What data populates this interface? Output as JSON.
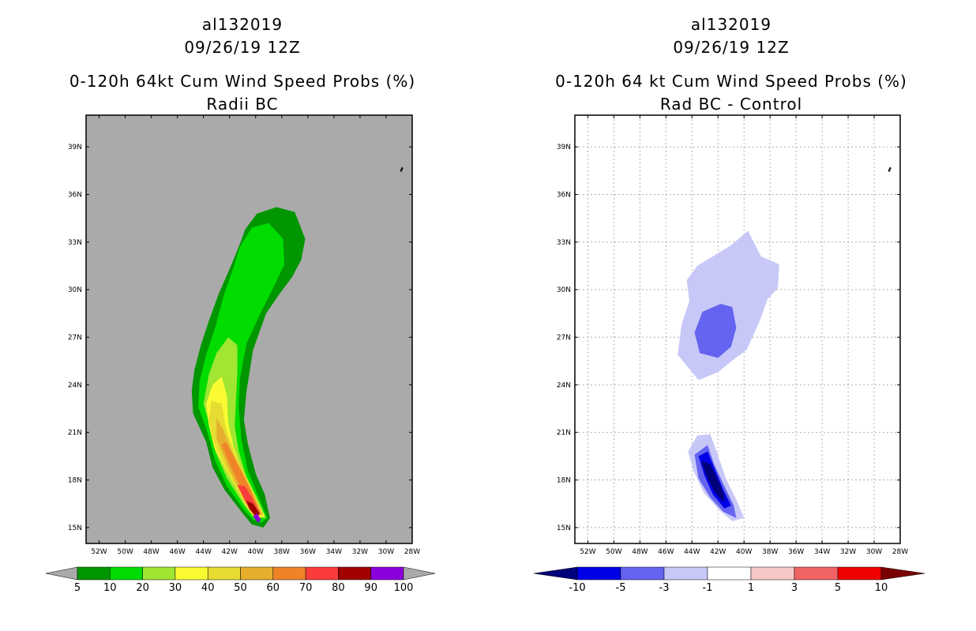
{
  "chart_data": [
    {
      "type": "heatmap",
      "title_lines": [
        "al132019",
        "09/26/19 12Z",
        "0-120h 64kt Cum Wind Speed Probs (%)",
        "Radii BC"
      ],
      "xlabel": "",
      "ylabel": "",
      "xlim": [
        -53,
        -28
      ],
      "ylim": [
        14,
        41
      ],
      "x_ticks": [
        "52W",
        "50W",
        "48W",
        "46W",
        "44W",
        "42W",
        "40W",
        "38W",
        "36W",
        "34W",
        "32W",
        "30W",
        "28W"
      ],
      "y_ticks": [
        "15N",
        "18N",
        "21N",
        "24N",
        "27N",
        "30N",
        "33N",
        "36N",
        "39N"
      ],
      "background": "#aaaaaa",
      "colorbar": {
        "levels": [
          "5",
          "10",
          "20",
          "30",
          "40",
          "50",
          "60",
          "70",
          "80",
          "90",
          "100"
        ],
        "colors": [
          "#009600",
          "#00dc00",
          "#a0e632",
          "#fafa32",
          "#e6dc32",
          "#e6af2d",
          "#f08228",
          "#fa3c3c",
          "#a00000",
          "#8c00dc"
        ],
        "under_color": "#aaaaaa",
        "over_color": "#aaaaaa"
      },
      "contours": [
        {
          "level": 5,
          "color": "#009600",
          "polygon": [
            [
              -40.3,
              15.2
            ],
            [
              -40.9,
              15.8
            ],
            [
              -42.4,
              17.4
            ],
            [
              -43.3,
              18.8
            ],
            [
              -43.8,
              20.4
            ],
            [
              -44.8,
              22.2
            ],
            [
              -44.9,
              23.6
            ],
            [
              -44.7,
              24.9
            ],
            [
              -44.2,
              26.5
            ],
            [
              -43.6,
              28.0
            ],
            [
              -42.8,
              29.8
            ],
            [
              -41.9,
              31.5
            ],
            [
              -41.2,
              32.9
            ],
            [
              -40.8,
              33.8
            ],
            [
              -39.9,
              34.8
            ],
            [
              -38.4,
              35.2
            ],
            [
              -37.0,
              34.9
            ],
            [
              -36.2,
              33.2
            ],
            [
              -36.5,
              31.9
            ],
            [
              -37.2,
              30.8
            ],
            [
              -38.2,
              29.7
            ],
            [
              -39.2,
              28.5
            ],
            [
              -40.2,
              26.2
            ],
            [
              -40.7,
              23.6
            ],
            [
              -40.9,
              21.8
            ],
            [
              -40.6,
              20.3
            ],
            [
              -40.0,
              18.4
            ],
            [
              -39.3,
              17.1
            ],
            [
              -38.9,
              15.6
            ],
            [
              -39.4,
              15.0
            ]
          ]
        },
        {
          "level": 10,
          "color": "#00dc00",
          "polygon": [
            [
              -40.2,
              15.5
            ],
            [
              -40.8,
              16.0
            ],
            [
              -42.2,
              17.6
            ],
            [
              -43.1,
              19.2
            ],
            [
              -43.7,
              21.0
            ],
            [
              -44.4,
              22.6
            ],
            [
              -44.3,
              24.2
            ],
            [
              -43.8,
              25.9
            ],
            [
              -43.1,
              27.6
            ],
            [
              -42.5,
              29.5
            ],
            [
              -41.7,
              31.4
            ],
            [
              -41.2,
              32.7
            ],
            [
              -40.3,
              33.9
            ],
            [
              -39.0,
              34.2
            ],
            [
              -37.9,
              33.2
            ],
            [
              -37.8,
              31.6
            ],
            [
              -38.6,
              30.2
            ],
            [
              -39.7,
              28.4
            ],
            [
              -40.7,
              26.6
            ],
            [
              -41.2,
              24.4
            ],
            [
              -41.3,
              22.6
            ],
            [
              -41.1,
              20.6
            ],
            [
              -40.6,
              18.6
            ],
            [
              -39.8,
              17.0
            ],
            [
              -39.1,
              15.6
            ],
            [
              -39.6,
              15.3
            ]
          ]
        },
        {
          "level": 20,
          "color": "#a0e632",
          "polygon": [
            [
              -40.1,
              15.6
            ],
            [
              -40.8,
              16.3
            ],
            [
              -42.2,
              18.1
            ],
            [
              -43.1,
              19.8
            ],
            [
              -43.5,
              21.4
            ],
            [
              -44.0,
              22.8
            ],
            [
              -43.6,
              24.6
            ],
            [
              -43.0,
              26.0
            ],
            [
              -42.1,
              27.0
            ],
            [
              -41.4,
              26.5
            ],
            [
              -41.4,
              24.8
            ],
            [
              -41.5,
              23.2
            ],
            [
              -41.6,
              21.4
            ],
            [
              -41.3,
              19.8
            ],
            [
              -40.7,
              18.2
            ],
            [
              -39.9,
              16.9
            ],
            [
              -39.2,
              15.6
            ]
          ]
        },
        {
          "level": 30,
          "color": "#fafa32",
          "polygon": [
            [
              -40.1,
              15.6
            ],
            [
              -40.8,
              16.5
            ],
            [
              -42.2,
              18.5
            ],
            [
              -43.2,
              20.1
            ],
            [
              -43.6,
              21.5
            ],
            [
              -43.8,
              22.8
            ],
            [
              -43.3,
              24.0
            ],
            [
              -42.6,
              24.5
            ],
            [
              -42.2,
              23.3
            ],
            [
              -42.1,
              21.6
            ],
            [
              -41.7,
              20.1
            ],
            [
              -41.0,
              18.6
            ],
            [
              -40.2,
              17.2
            ],
            [
              -39.3,
              15.7
            ]
          ]
        },
        {
          "level": 40,
          "color": "#e6dc32",
          "polygon": [
            [
              -40.1,
              15.6
            ],
            [
              -40.9,
              16.6
            ],
            [
              -42.2,
              18.6
            ],
            [
              -43.2,
              20.3
            ],
            [
              -43.6,
              21.8
            ],
            [
              -43.4,
              23.0
            ],
            [
              -42.6,
              22.8
            ],
            [
              -42.3,
              21.3
            ],
            [
              -41.6,
              19.7
            ],
            [
              -40.5,
              17.8
            ],
            [
              -39.4,
              15.8
            ]
          ]
        },
        {
          "level": 50,
          "color": "#e6af2d",
          "polygon": [
            [
              -40.1,
              15.7
            ],
            [
              -40.9,
              16.8
            ],
            [
              -42.1,
              18.8
            ],
            [
              -43.0,
              20.6
            ],
            [
              -43.0,
              21.9
            ],
            [
              -42.5,
              21.2
            ],
            [
              -41.8,
              19.8
            ],
            [
              -40.6,
              17.8
            ],
            [
              -39.5,
              15.8
            ]
          ]
        },
        {
          "level": 60,
          "color": "#f08228",
          "polygon": [
            [
              -40.1,
              15.7
            ],
            [
              -40.8,
              16.9
            ],
            [
              -41.8,
              18.7
            ],
            [
              -42.6,
              20.2
            ],
            [
              -42.3,
              20.4
            ],
            [
              -41.4,
              19.0
            ],
            [
              -40.5,
              17.6
            ],
            [
              -39.6,
              15.9
            ]
          ]
        },
        {
          "level": 70,
          "color": "#fa3c3c",
          "polygon": [
            [
              -40.0,
              15.7
            ],
            [
              -40.7,
              16.5
            ],
            [
              -41.4,
              17.7
            ],
            [
              -40.8,
              17.6
            ],
            [
              -40.3,
              16.9
            ],
            [
              -39.7,
              15.9
            ]
          ]
        },
        {
          "level": 80,
          "color": "#a00000",
          "polygon": [
            [
              -39.9,
              15.6
            ],
            [
              -40.5,
              16.2
            ],
            [
              -40.7,
              16.7
            ],
            [
              -40.2,
              16.5
            ],
            [
              -39.7,
              15.9
            ]
          ]
        },
        {
          "level": 90,
          "color": "#8c00dc",
          "polygon": [
            [
              -39.8,
              15.3
            ],
            [
              -40.2,
              15.7
            ],
            [
              -39.9,
              15.9
            ],
            [
              -39.6,
              15.5
            ]
          ]
        }
      ]
    },
    {
      "type": "heatmap",
      "title_lines": [
        "al132019",
        "09/26/19 12Z",
        "0-120h 64 kt Cum Wind Speed Probs (%)",
        "Rad BC - Control"
      ],
      "xlabel": "",
      "ylabel": "",
      "xlim": [
        -53,
        -28
      ],
      "ylim": [
        14,
        41
      ],
      "x_ticks": [
        "52W",
        "50W",
        "48W",
        "46W",
        "44W",
        "42W",
        "40W",
        "38W",
        "36W",
        "34W",
        "32W",
        "30W",
        "28W"
      ],
      "y_ticks": [
        "15N",
        "18N",
        "21N",
        "24N",
        "27N",
        "30N",
        "33N",
        "36N",
        "39N"
      ],
      "background": "#ffffff",
      "grid": true,
      "colorbar": {
        "levels": [
          "-10",
          "-5",
          "-3",
          "-1",
          "1",
          "3",
          "5",
          "10"
        ],
        "colors": [
          "#0000e6",
          "#6464f0",
          "#c8c8f8",
          "#ffffff",
          "#f8c8c8",
          "#f06464",
          "#f00000"
        ],
        "under_color": "#00007a",
        "over_color": "#7a0000"
      },
      "contours": [
        {
          "level": -1,
          "color": "#c8c8f8",
          "polygon": [
            [
              -45.1,
              25.9
            ],
            [
              -44.8,
              27.8
            ],
            [
              -44.2,
              29.3
            ],
            [
              -44.4,
              30.6
            ],
            [
              -43.6,
              31.5
            ],
            [
              -42.2,
              32.2
            ],
            [
              -41.0,
              32.8
            ],
            [
              -39.7,
              33.7
            ],
            [
              -38.7,
              32.1
            ],
            [
              -37.3,
              31.6
            ],
            [
              -37.4,
              30.1
            ],
            [
              -38.2,
              29.4
            ],
            [
              -38.8,
              28.0
            ],
            [
              -39.8,
              26.2
            ],
            [
              -40.8,
              25.6
            ],
            [
              -42.0,
              24.8
            ],
            [
              -43.5,
              24.3
            ]
          ]
        },
        {
          "level": -1,
          "color": "#c8c8f8",
          "polygon": [
            [
              -43.6,
              20.8
            ],
            [
              -44.3,
              19.8
            ],
            [
              -43.9,
              18.6
            ],
            [
              -43.1,
              17.2
            ],
            [
              -41.9,
              16.1
            ],
            [
              -40.9,
              15.4
            ],
            [
              -40.0,
              15.6
            ],
            [
              -40.5,
              16.6
            ],
            [
              -41.4,
              18.1
            ],
            [
              -42.1,
              19.8
            ],
            [
              -42.6,
              20.9
            ]
          ]
        },
        {
          "level": -3,
          "color": "#6464f0",
          "polygon": [
            [
              -43.8,
              27.3
            ],
            [
              -43.2,
              28.6
            ],
            [
              -41.8,
              29.1
            ],
            [
              -40.9,
              28.9
            ],
            [
              -40.6,
              27.6
            ],
            [
              -41.0,
              26.4
            ],
            [
              -42.0,
              25.7
            ],
            [
              -43.4,
              26.0
            ]
          ]
        },
        {
          "level": -3,
          "color": "#6464f0",
          "polygon": [
            [
              -43.8,
              19.6
            ],
            [
              -43.5,
              18.1
            ],
            [
              -42.6,
              16.9
            ],
            [
              -41.6,
              16.0
            ],
            [
              -40.6,
              15.6
            ],
            [
              -40.8,
              16.4
            ],
            [
              -41.5,
              17.6
            ],
            [
              -42.3,
              19.0
            ],
            [
              -42.8,
              20.2
            ]
          ]
        },
        {
          "level": -5,
          "color": "#0000e6",
          "polygon": [
            [
              -43.5,
              19.5
            ],
            [
              -43.0,
              18.2
            ],
            [
              -42.4,
              17.1
            ],
            [
              -41.5,
              16.2
            ],
            [
              -41.0,
              16.4
            ],
            [
              -41.6,
              17.4
            ],
            [
              -42.2,
              18.6
            ],
            [
              -42.8,
              19.8
            ]
          ]
        },
        {
          "level": -10,
          "color": "#00007a",
          "polygon": [
            [
              -43.3,
              19.2
            ],
            [
              -42.9,
              18.3
            ],
            [
              -42.3,
              17.3
            ],
            [
              -41.6,
              16.6
            ],
            [
              -41.5,
              17.0
            ],
            [
              -42.0,
              18.0
            ],
            [
              -42.6,
              19.0
            ]
          ]
        }
      ]
    }
  ]
}
